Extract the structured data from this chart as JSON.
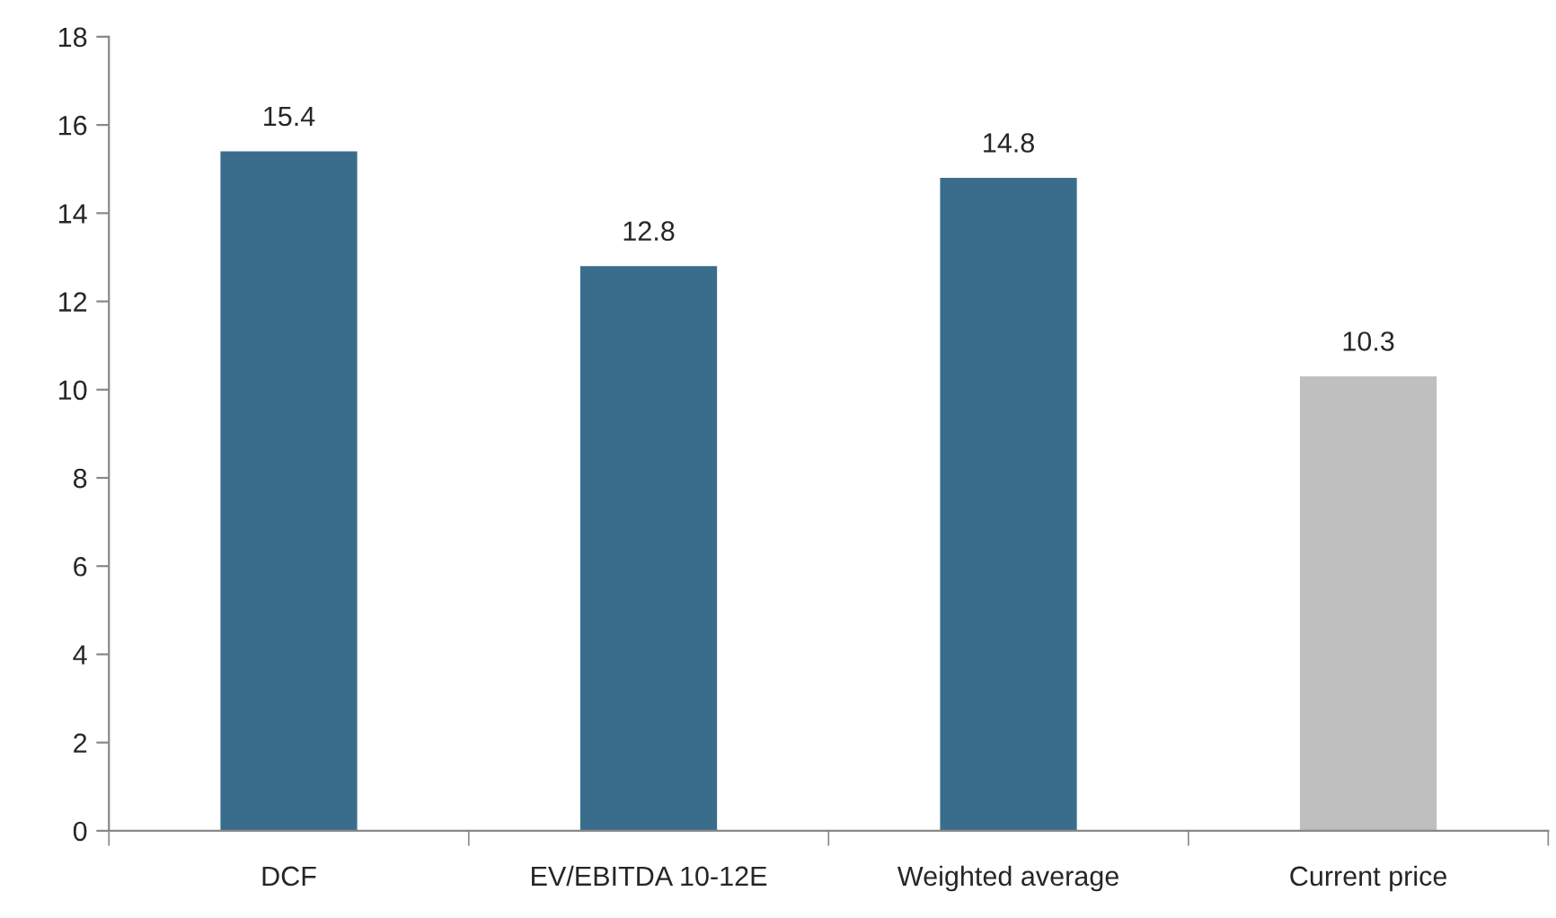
{
  "chart_data": {
    "type": "bar",
    "categories": [
      "DCF",
      "EV/EBITDA 10-12E",
      "Weighted average",
      "Current price"
    ],
    "values": [
      15.4,
      12.8,
      14.8,
      10.3
    ],
    "colors": [
      "#3a6d8c",
      "#3a6d8c",
      "#3a6d8c",
      "#bfbfbf"
    ],
    "ylim": [
      0,
      18
    ],
    "yticks": [
      0,
      2,
      4,
      6,
      8,
      10,
      12,
      14,
      16,
      18
    ],
    "data_labels": true,
    "grid": false,
    "legend": false
  }
}
